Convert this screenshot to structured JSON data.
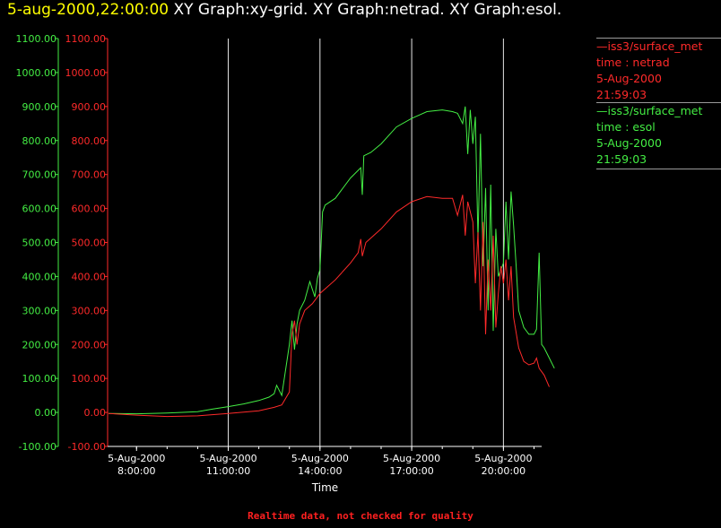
{
  "header": {
    "timestamp": "5-aug-2000,22:00:00",
    "title": "XY Graph:xy-grid.  XY Graph:netrad.  XY Graph:esol."
  },
  "legend": [
    {
      "line1": "—iss3/surface_met",
      "line2": "time : netrad",
      "line3": "5-Aug-2000",
      "line4": "21:59:03",
      "color": "#ff2a2a"
    },
    {
      "line1": "—iss3/surface_met",
      "line2": "time : esol",
      "line3": "5-Aug-2000",
      "line4": "21:59:03",
      "color": "#44ee44"
    }
  ],
  "footer_note": "Realtime data, not checked for quality",
  "chart_data": {
    "type": "line",
    "xlabel": "Time",
    "ylim": [
      -100,
      1100
    ],
    "xlim": [
      "2000-08-05 07:05",
      "2000-08-05 21:15"
    ],
    "y_ticks": [
      "1100.00",
      "1000.00",
      "900.00",
      "800.00",
      "700.00",
      "600.00",
      "500.00",
      "400.00",
      "300.00",
      "200.00",
      "100.00",
      "0.00",
      "-100.00"
    ],
    "x_ticks": [
      {
        "date": "5-Aug-2000",
        "time": "8:00:00",
        "t": "08:00"
      },
      {
        "date": "5-Aug-2000",
        "time": "11:00:00",
        "t": "11:00"
      },
      {
        "date": "5-Aug-2000",
        "time": "14:00:00",
        "t": "14:00"
      },
      {
        "date": "5-Aug-2000",
        "time": "17:00:00",
        "t": "17:00"
      },
      {
        "date": "5-Aug-2000",
        "time": "20:00:00",
        "t": "20:00"
      }
    ],
    "vertical_grid": [
      "11:00",
      "14:00",
      "17:00",
      "20:00"
    ],
    "colors": {
      "axis_esol": "#44ee44",
      "axis_netrad": "#ff2a2a",
      "grid": "#e6e6e6",
      "text": "#ffffff"
    },
    "series": [
      {
        "name": "time : esol",
        "color": "#44ee44",
        "points": [
          [
            "07:05",
            -3
          ],
          [
            "08:00",
            -4
          ],
          [
            "09:00",
            -2
          ],
          [
            "10:00",
            2
          ],
          [
            "10:30",
            10
          ],
          [
            "11:00",
            17
          ],
          [
            "11:30",
            25
          ],
          [
            "12:00",
            35
          ],
          [
            "12:20",
            45
          ],
          [
            "12:30",
            55
          ],
          [
            "12:35",
            80
          ],
          [
            "12:45",
            50
          ],
          [
            "13:00",
            200
          ],
          [
            "13:05",
            270
          ],
          [
            "13:10",
            185
          ],
          [
            "13:15",
            260
          ],
          [
            "13:20",
            300
          ],
          [
            "13:30",
            330
          ],
          [
            "13:40",
            385
          ],
          [
            "13:50",
            340
          ],
          [
            "13:55",
            395
          ],
          [
            "14:00",
            420
          ],
          [
            "14:05",
            590
          ],
          [
            "14:10",
            610
          ],
          [
            "14:30",
            630
          ],
          [
            "15:00",
            690
          ],
          [
            "15:20",
            720
          ],
          [
            "15:23",
            640
          ],
          [
            "15:26",
            755
          ],
          [
            "15:40",
            765
          ],
          [
            "16:00",
            790
          ],
          [
            "16:30",
            840
          ],
          [
            "17:00",
            865
          ],
          [
            "17:30",
            885
          ],
          [
            "18:00",
            890
          ],
          [
            "18:20",
            885
          ],
          [
            "18:30",
            880
          ],
          [
            "18:40",
            850
          ],
          [
            "18:45",
            900
          ],
          [
            "18:50",
            760
          ],
          [
            "18:55",
            890
          ],
          [
            "19:00",
            790
          ],
          [
            "19:05",
            870
          ],
          [
            "19:10",
            510
          ],
          [
            "19:15",
            820
          ],
          [
            "19:20",
            430
          ],
          [
            "19:25",
            660
          ],
          [
            "19:30",
            300
          ],
          [
            "19:35",
            670
          ],
          [
            "19:40",
            240
          ],
          [
            "19:45",
            540
          ],
          [
            "19:50",
            400
          ],
          [
            "20:00",
            440
          ],
          [
            "20:05",
            620
          ],
          [
            "20:10",
            450
          ],
          [
            "20:15",
            650
          ],
          [
            "20:20",
            550
          ],
          [
            "20:25",
            430
          ],
          [
            "20:30",
            300
          ],
          [
            "20:40",
            250
          ],
          [
            "20:50",
            230
          ],
          [
            "21:00",
            230
          ],
          [
            "21:05",
            245
          ],
          [
            "21:10",
            470
          ],
          [
            "21:15",
            200
          ],
          [
            "21:20",
            190
          ],
          [
            "21:30",
            160
          ],
          [
            "21:40",
            130
          ]
        ]
      },
      {
        "name": "time : netrad",
        "color": "#ff2a2a",
        "points": [
          [
            "07:05",
            -3
          ],
          [
            "08:00",
            -8
          ],
          [
            "09:00",
            -12
          ],
          [
            "10:00",
            -10
          ],
          [
            "11:00",
            -3
          ],
          [
            "12:00",
            5
          ],
          [
            "12:30",
            15
          ],
          [
            "12:45",
            22
          ],
          [
            "13:00",
            60
          ],
          [
            "13:05",
            230
          ],
          [
            "13:10",
            270
          ],
          [
            "13:15",
            200
          ],
          [
            "13:20",
            260
          ],
          [
            "13:30",
            300
          ],
          [
            "13:45",
            320
          ],
          [
            "14:00",
            350
          ],
          [
            "14:30",
            390
          ],
          [
            "15:00",
            440
          ],
          [
            "15:15",
            470
          ],
          [
            "15:20",
            510
          ],
          [
            "15:23",
            460
          ],
          [
            "15:30",
            500
          ],
          [
            "16:00",
            540
          ],
          [
            "16:30",
            590
          ],
          [
            "17:00",
            620
          ],
          [
            "17:30",
            635
          ],
          [
            "18:00",
            630
          ],
          [
            "18:20",
            630
          ],
          [
            "18:30",
            580
          ],
          [
            "18:40",
            640
          ],
          [
            "18:45",
            520
          ],
          [
            "18:50",
            620
          ],
          [
            "19:00",
            560
          ],
          [
            "19:05",
            380
          ],
          [
            "19:10",
            530
          ],
          [
            "19:15",
            300
          ],
          [
            "19:20",
            560
          ],
          [
            "19:25",
            230
          ],
          [
            "19:30",
            450
          ],
          [
            "19:35",
            300
          ],
          [
            "19:40",
            520
          ],
          [
            "19:45",
            250
          ],
          [
            "19:50",
            350
          ],
          [
            "19:55",
            430
          ],
          [
            "20:00",
            380
          ],
          [
            "20:05",
            450
          ],
          [
            "20:10",
            330
          ],
          [
            "20:15",
            430
          ],
          [
            "20:20",
            280
          ],
          [
            "20:30",
            190
          ],
          [
            "20:40",
            150
          ],
          [
            "20:50",
            140
          ],
          [
            "21:00",
            145
          ],
          [
            "21:05",
            160
          ],
          [
            "21:10",
            130
          ],
          [
            "21:20",
            110
          ],
          [
            "21:30",
            75
          ]
        ]
      }
    ]
  }
}
